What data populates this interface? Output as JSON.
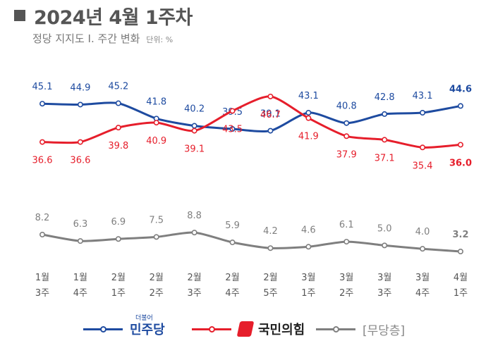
{
  "header": {
    "title": "2024년 4월 1주차",
    "subtitle": "정당 지지도 Ⅰ. 주간 변화",
    "unit": "단위: %"
  },
  "chart_data": {
    "type": "line",
    "categories": [
      [
        "1월",
        "3주"
      ],
      [
        "1월",
        "4주"
      ],
      [
        "2월",
        "1주"
      ],
      [
        "2월",
        "2주"
      ],
      [
        "2월",
        "3주"
      ],
      [
        "2월",
        "4주"
      ],
      [
        "2월",
        "5주"
      ],
      [
        "3월",
        "1주"
      ],
      [
        "3월",
        "2주"
      ],
      [
        "3월",
        "3주"
      ],
      [
        "3월",
        "4주"
      ],
      [
        "4월",
        "1주"
      ]
    ],
    "series": [
      {
        "name": "민주당",
        "color": "#1e4ba0",
        "values": [
          45.1,
          44.9,
          45.2,
          41.8,
          40.2,
          39.5,
          39.1,
          43.1,
          40.8,
          42.8,
          43.1,
          44.6
        ]
      },
      {
        "name": "국민의힘",
        "color": "#e61e2b",
        "values": [
          36.6,
          36.6,
          39.8,
          40.9,
          39.1,
          43.5,
          46.7,
          41.9,
          37.9,
          37.1,
          35.4,
          36.0
        ]
      },
      {
        "name": "[무당층]",
        "color": "#7f7f7f",
        "values": [
          8.2,
          6.3,
          6.9,
          7.5,
          8.8,
          5.9,
          4.2,
          4.6,
          6.1,
          5.0,
          4.0,
          3.2
        ]
      }
    ],
    "legend": "bottom",
    "grid": false
  },
  "legend": {
    "dem_small": "더불어",
    "dem": "민주당",
    "ppp": "국민의힘",
    "none": "[무당층]"
  }
}
